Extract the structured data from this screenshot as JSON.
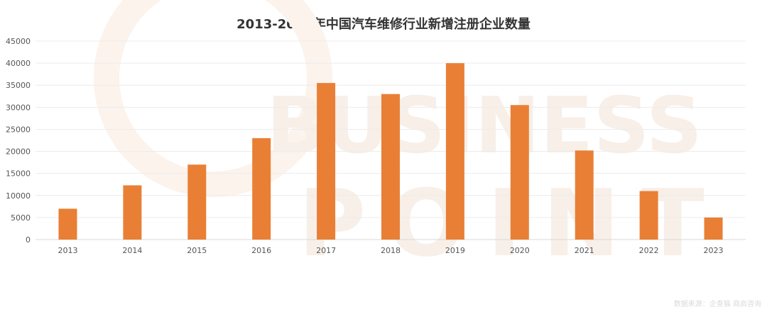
{
  "chart_data": {
    "type": "bar",
    "title": "2013-2023年中国汽车维修行业新增注册企业数量",
    "categories": [
      "2013",
      "2014",
      "2015",
      "2016",
      "2017",
      "2018",
      "2019",
      "2020",
      "2021",
      "2022",
      "2023"
    ],
    "values": [
      7000,
      12300,
      17000,
      23000,
      35500,
      33000,
      40000,
      30500,
      20200,
      11000,
      5000
    ],
    "xlabel": "",
    "ylabel": "",
    "ylim": [
      0,
      45000
    ],
    "yticks": [
      "0",
      "5000",
      "10000",
      "15000",
      "20000",
      "25000",
      "30000",
      "35000",
      "40000",
      "45000"
    ],
    "grid": true,
    "legend": "none",
    "bar_color": "#E97F35"
  },
  "source": "数据来源：企查猫 商启咨询",
  "watermark": {
    "line1": "BUSINESS",
    "line2": "POINT",
    "color": "#F7EFE8"
  }
}
